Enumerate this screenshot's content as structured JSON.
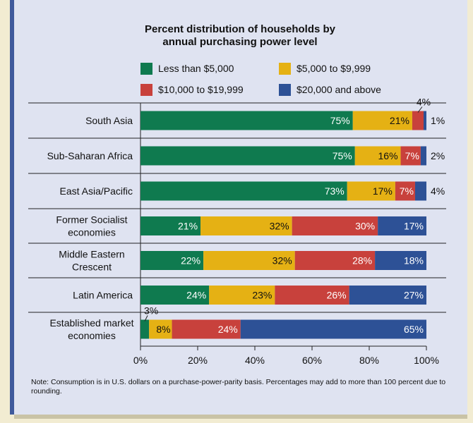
{
  "colors": {
    "less_than_5000": "#0f7a4f",
    "5000_to_9999": "#e5b114",
    "10000_to_19999": "#c8413c",
    "20000_and_above": "#2d5196"
  },
  "note": "Note: Consumption is in U.S. dollars on a purchase-power-parity basis. Percentages may add to more than 100 percent due to rounding.",
  "chart_data": {
    "type": "bar",
    "orientation": "horizontal",
    "stacked": true,
    "title": "Percent distribution of households by annual purchasing power level",
    "title_lines": [
      "Percent distribution of households by",
      "annual purchasing power level"
    ],
    "categories": [
      [
        "South Asia"
      ],
      [
        "Sub-Saharan Africa"
      ],
      [
        "East Asia/Pacific"
      ],
      [
        "Former Socialist",
        "economies"
      ],
      [
        "Middle Eastern",
        "Crescent"
      ],
      [
        "Latin America"
      ],
      [
        "Established market",
        "economies"
      ]
    ],
    "series": [
      {
        "name": "Less than $5,000",
        "values": [
          75,
          75,
          73,
          21,
          22,
          24,
          3
        ]
      },
      {
        "name": "$5,000 to $9,999",
        "values": [
          21,
          16,
          17,
          32,
          32,
          23,
          8
        ]
      },
      {
        "name": "$10,000 to $19,999",
        "values": [
          4,
          7,
          7,
          30,
          28,
          26,
          24
        ]
      },
      {
        "name": "$20,000 and above",
        "values": [
          1,
          2,
          4,
          17,
          18,
          27,
          65
        ]
      }
    ],
    "x_ticks": [
      "0%",
      "20%",
      "40%",
      "60%",
      "80%",
      "100%"
    ],
    "xlim": [
      0,
      100
    ],
    "legend_position": "top"
  }
}
